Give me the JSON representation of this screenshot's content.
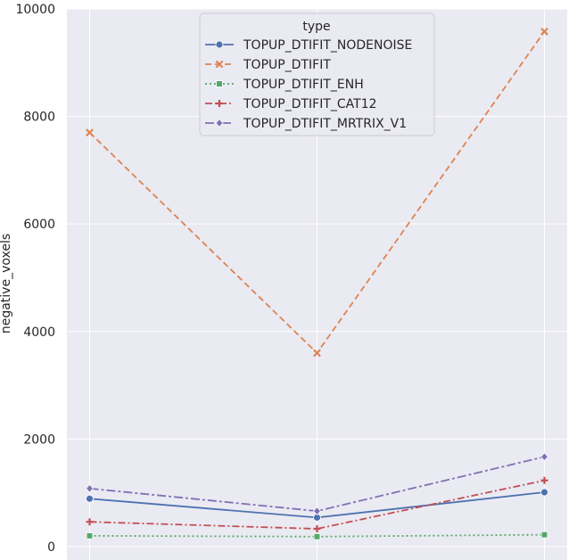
{
  "chart_data": {
    "type": "line",
    "ylabel": "negative_voxels",
    "ylim": [
      -250,
      10000
    ],
    "yticks": [
      "0",
      "2000",
      "4000",
      "6000",
      "8000",
      "10000"
    ],
    "x": [
      0,
      1,
      2
    ],
    "xlim": [
      -0.1,
      2.1
    ],
    "grid": true,
    "legend": {
      "title": "type",
      "placement": "top-center"
    },
    "series": [
      {
        "name": "TOPUP_DTIFIT_NODENOISE",
        "values": [
          890,
          540,
          1010
        ],
        "color": "#4c72b0",
        "dash": "solid",
        "marker": "circle"
      },
      {
        "name": "TOPUP_DTIFIT",
        "values": [
          7700,
          3600,
          9580
        ],
        "color": "#dd8452",
        "dash": "dashed",
        "marker": "x"
      },
      {
        "name": "TOPUP_DTIFIT_ENH",
        "values": [
          200,
          185,
          220
        ],
        "color": "#55a868",
        "dash": "dotted",
        "marker": "square"
      },
      {
        "name": "TOPUP_DTIFIT_CAT12",
        "values": [
          460,
          330,
          1230
        ],
        "color": "#c44e52",
        "dash": "dashdot",
        "marker": "plus"
      },
      {
        "name": "TOPUP_DTIFIT_MRTRIX_V1",
        "values": [
          1080,
          660,
          1670
        ],
        "color": "#8172b3",
        "dash": "dashdotlong",
        "marker": "diamond"
      }
    ]
  }
}
